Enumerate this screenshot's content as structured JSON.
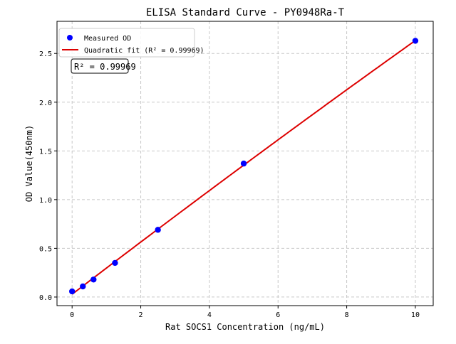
{
  "chart_data": {
    "type": "scatter",
    "title": "ELISA Standard Curve - PY0948Ra-T",
    "xlabel": "Rat SOCS1 Concentration (ng/mL)",
    "ylabel": "OD Value(450nm)",
    "xlim": [
      -0.44,
      10.52
    ],
    "ylim": [
      -0.088,
      2.83
    ],
    "xticks": [
      0,
      2,
      4,
      6,
      8,
      10
    ],
    "yticks": [
      0.0,
      0.5,
      1.0,
      1.5,
      2.0,
      2.5
    ],
    "xtick_labels": [
      "0",
      "2",
      "4",
      "6",
      "8",
      "10"
    ],
    "ytick_labels": [
      "0.0",
      "0.5",
      "1.0",
      "1.5",
      "2.0",
      "2.5"
    ],
    "grid": true,
    "legend_position": "top-left",
    "series": [
      {
        "name": "Measured OD",
        "kind": "scatter",
        "color": "#0000ff",
        "x": [
          0,
          0.3125,
          0.625,
          1.25,
          2.5,
          5,
          10
        ],
        "y": [
          0.058,
          0.109,
          0.18,
          0.35,
          0.69,
          1.37,
          2.63
        ]
      },
      {
        "name": "Quadratic fit (R² = 0.99969)",
        "kind": "line",
        "fit": "quadratic",
        "color": "#dd0000"
      }
    ],
    "annotation": "R² = 0.99969"
  }
}
